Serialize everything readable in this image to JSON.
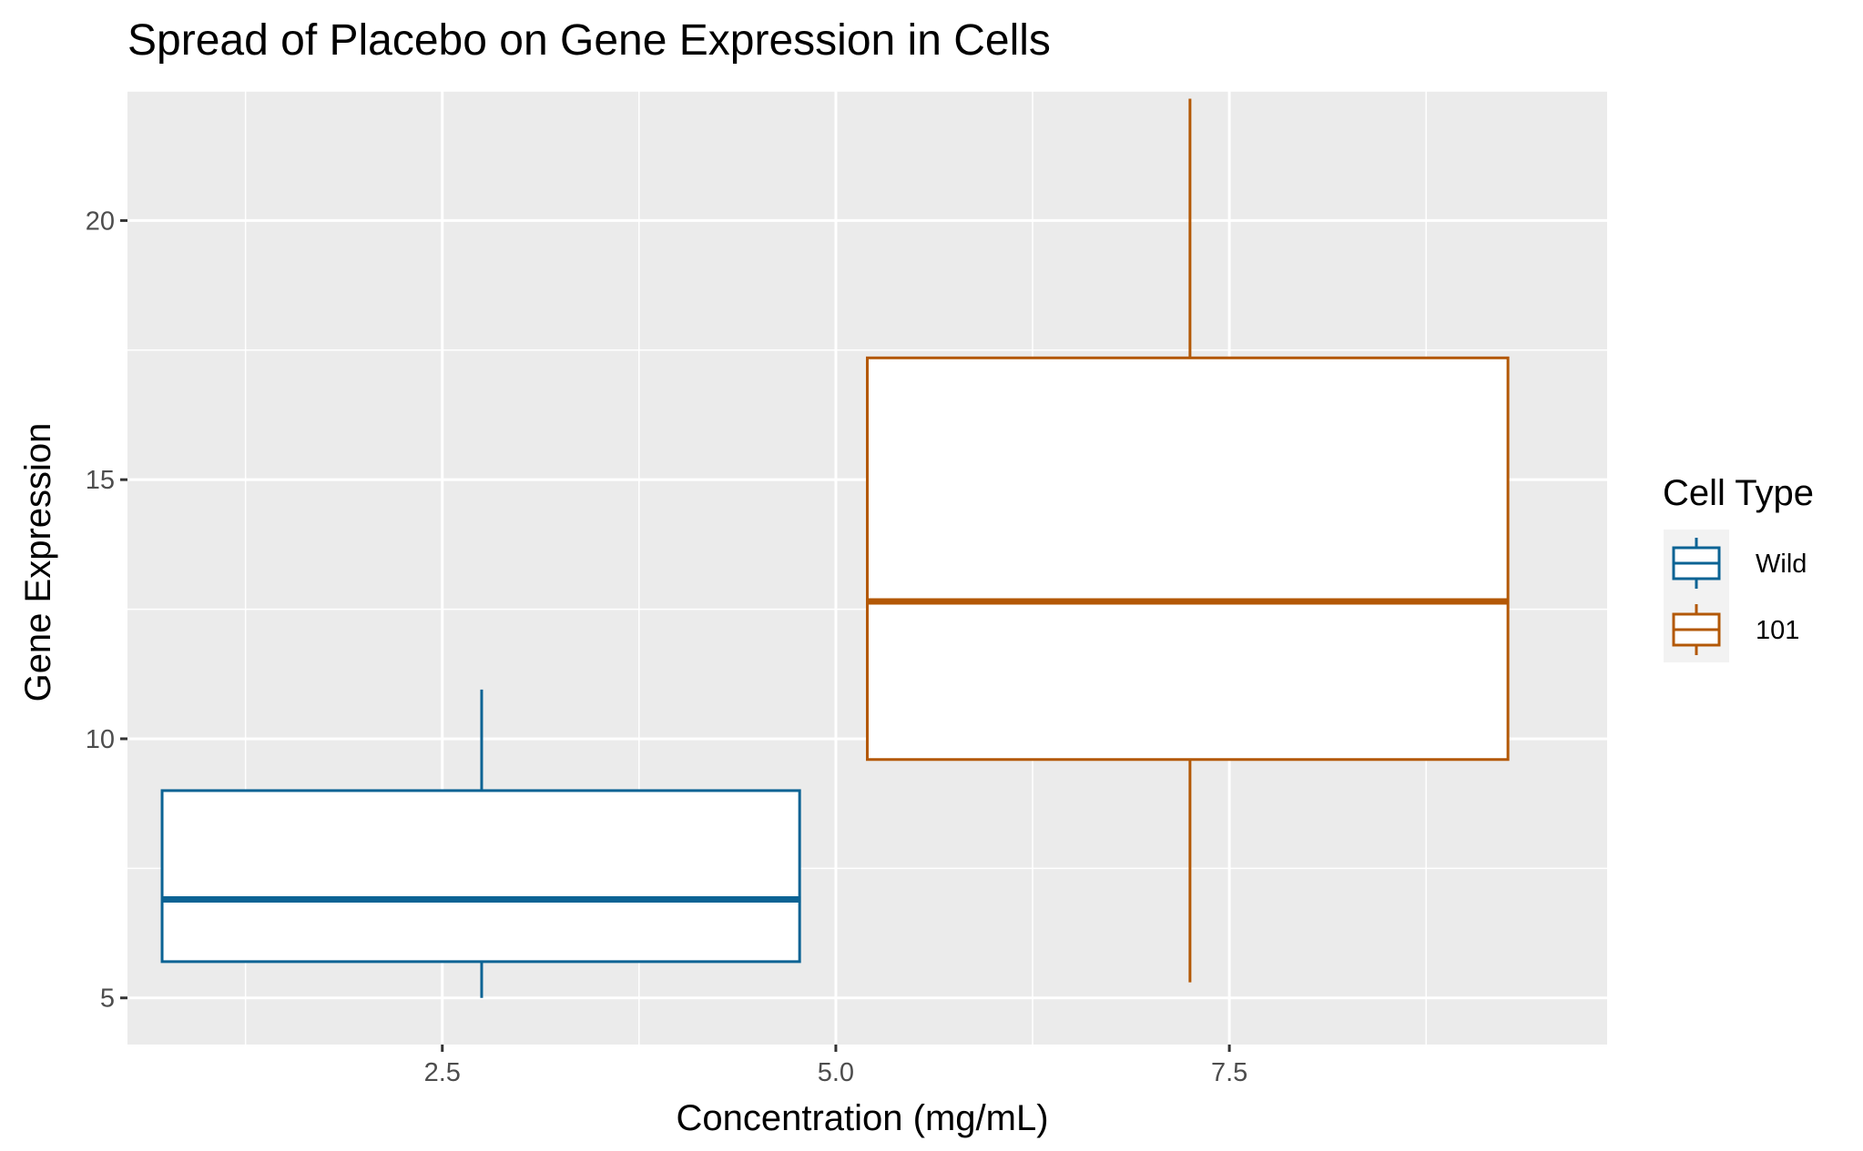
{
  "chart_data": {
    "type": "boxplot",
    "title": "Spread of Placebo on Gene Expression in Cells",
    "xlabel": "Concentration (mg/mL)",
    "ylabel": "Gene Expression",
    "xlim": [
      0.5,
      9.9
    ],
    "ylim": [
      4.1,
      22.5
    ],
    "x_ticks": [
      2.5,
      5.0,
      7.5
    ],
    "x_tick_labels": [
      "2.5",
      "5.0",
      "7.5"
    ],
    "y_ticks": [
      5,
      10,
      15,
      20
    ],
    "y_tick_labels": [
      "5",
      "10",
      "15",
      "20"
    ],
    "grid": true,
    "legend": {
      "title": "Cell Type",
      "position": "right"
    },
    "series": [
      {
        "name": "Wild",
        "color": "#0b6394",
        "x_center": 2.75,
        "x_min": 0.72,
        "x_max": 4.77,
        "whisker_low": 5.0,
        "q1": 5.7,
        "median": 6.9,
        "q3": 9.0,
        "whisker_high": 10.95
      },
      {
        "name": "101",
        "color": "#b35806",
        "x_center": 7.25,
        "x_min": 5.2,
        "x_max": 9.27,
        "whisker_low": 5.3,
        "q1": 9.6,
        "median": 12.65,
        "q3": 17.35,
        "whisker_high": 22.35
      }
    ]
  }
}
